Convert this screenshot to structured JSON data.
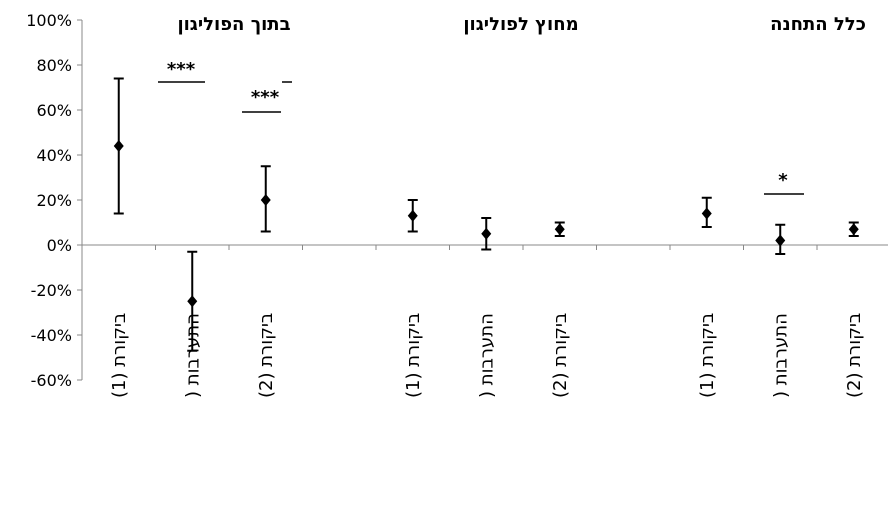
{
  "chart_data": {
    "type": "scatter",
    "title": "",
    "xlabel": "",
    "ylabel": "",
    "ylim": [
      -60,
      100
    ],
    "y_ticks": [
      "100%",
      "80%",
      "60%",
      "40%",
      "20%",
      "0%",
      "-20%",
      "-40%",
      "-60%"
    ],
    "grid": false,
    "groups": [
      {
        "title": "בתוך הפוליגון",
        "categories": [
          "ביקורת (1)",
          "התערבות (",
          "ביקורת (2)"
        ],
        "values": [
          44,
          -25,
          20
        ],
        "error_low": [
          14,
          -47,
          6
        ],
        "error_high": [
          74,
          -3,
          35
        ]
      },
      {
        "title": "מחוץ לפוליגון",
        "categories": [
          "ביקורת (1)",
          "התערבות (",
          "ביקורת (2)"
        ],
        "values": [
          13,
          5,
          7
        ],
        "error_low": [
          6,
          -2,
          4
        ],
        "error_high": [
          20,
          12,
          10
        ]
      },
      {
        "title": "כלל התחנה",
        "categories": [
          "ביקורת (1)",
          "התערבות (",
          "ביקורת (2)"
        ],
        "values": [
          14,
          2,
          7
        ],
        "error_low": [
          8,
          -4,
          4
        ],
        "error_high": [
          21,
          9,
          10
        ]
      }
    ],
    "significance": [
      {
        "label": "***",
        "group": 0,
        "between": [
          0,
          1
        ]
      },
      {
        "label": "***",
        "group": 0,
        "between": [
          1,
          2
        ]
      },
      {
        "label": "*",
        "group": 2,
        "between": [
          1,
          2
        ]
      }
    ]
  }
}
